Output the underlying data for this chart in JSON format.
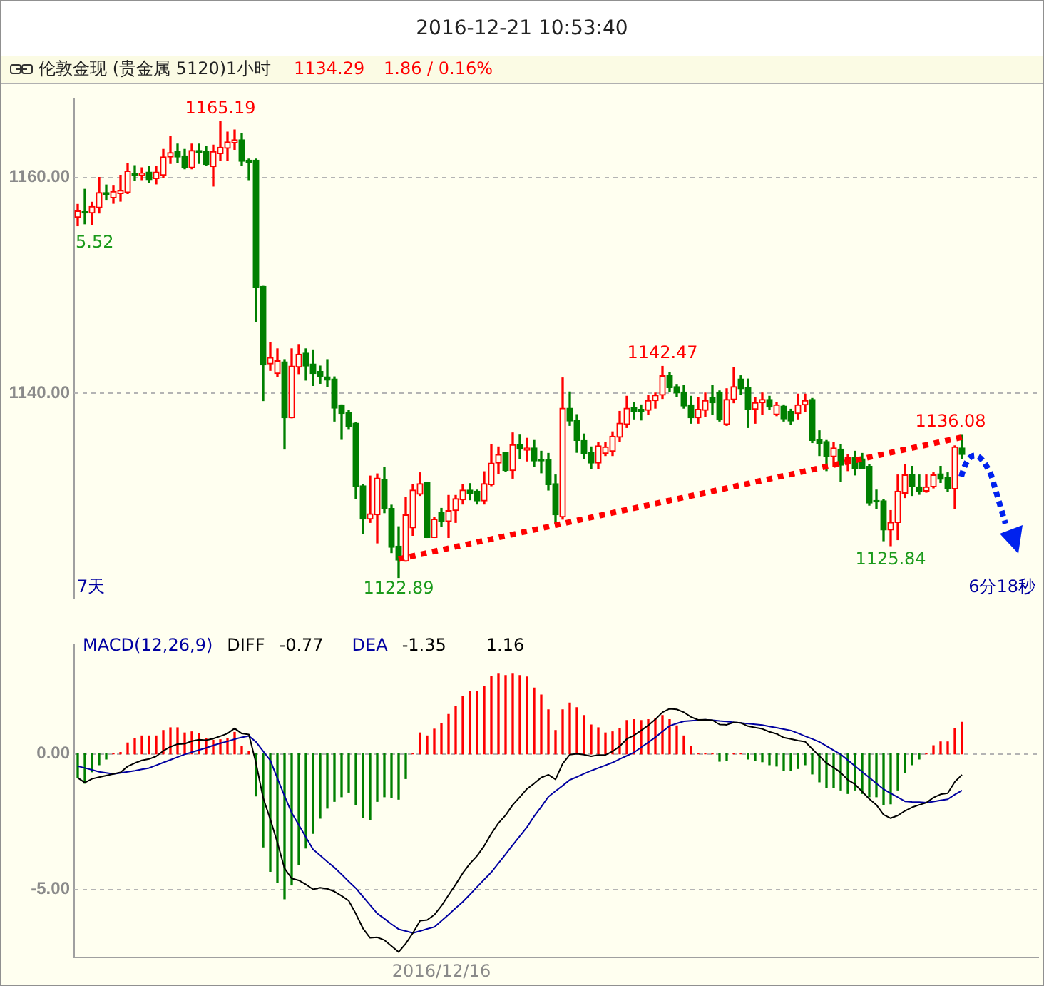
{
  "chart_data": [
    {
      "type": "candlestick",
      "title": "2016-12-21 10:53:40",
      "subtitle": "伦敦金现 (贵金属 5120)1小时",
      "categories": [
        null,
        null,
        null,
        null,
        null,
        null,
        null,
        null,
        null,
        null,
        null,
        null,
        null,
        null,
        null,
        null,
        null,
        null,
        null,
        null,
        null,
        null,
        null,
        null,
        null,
        null,
        null,
        null,
        null,
        null,
        null,
        null,
        null,
        null,
        null,
        null,
        null,
        null,
        null,
        null,
        null,
        null,
        null,
        null,
        null,
        null,
        null,
        null,
        null,
        null,
        null,
        null,
        null,
        null,
        null,
        null,
        null,
        null,
        null,
        null,
        null,
        null,
        null,
        null,
        null,
        null,
        null,
        null,
        null,
        null,
        null,
        null,
        null,
        null,
        null,
        null,
        null,
        null,
        null,
        null,
        null,
        null,
        null,
        null,
        null,
        null,
        null,
        null,
        null,
        null,
        null,
        null,
        null,
        null,
        null,
        null,
        null,
        null,
        null,
        null,
        null,
        null,
        null,
        null,
        null,
        null,
        null,
        null,
        null,
        null,
        null,
        null,
        null,
        null,
        null,
        null,
        null,
        null,
        null,
        null,
        null,
        null,
        null,
        null,
        null
      ],
      "ohlc": [
        [
          1156.3,
          1157.5,
          1155.52,
          1156.9
        ],
        [
          1156.8,
          1158.9,
          1155.7,
          1156.7
        ],
        [
          1156.7,
          1157.7,
          1155.6,
          1157.3
        ],
        [
          1157.2,
          1160,
          1156.7,
          1158.6
        ],
        [
          1158.6,
          1159.3,
          1157.9,
          1158.4
        ],
        [
          1158.1,
          1159.2,
          1157.6,
          1158.7
        ],
        [
          1158.5,
          1160.2,
          1157.8,
          1158.8
        ],
        [
          1158.6,
          1161.3,
          1158.5,
          1160.6
        ],
        [
          1160.4,
          1161.1,
          1159.7,
          1160.2
        ],
        [
          1160.2,
          1160.9,
          1159.8,
          1160.4
        ],
        [
          1160.5,
          1161,
          1159.5,
          1159.8
        ],
        [
          1159.9,
          1161,
          1159.4,
          1160.5
        ],
        [
          1160.2,
          1162.6,
          1160,
          1161.9
        ],
        [
          1161.9,
          1163.8,
          1161.3,
          1162.3
        ],
        [
          1162.4,
          1163.1,
          1161.4,
          1161.9
        ],
        [
          1162,
          1162.6,
          1160.8,
          1160.9
        ],
        [
          1160.9,
          1163.1,
          1160.8,
          1162.5
        ],
        [
          1162.5,
          1163.1,
          1161.3,
          1162.3
        ],
        [
          1162.4,
          1162.9,
          1161.1,
          1161.2
        ],
        [
          1161,
          1163,
          1159.2,
          1162.4
        ],
        [
          1162.2,
          1165.19,
          1161.6,
          1162.8
        ],
        [
          1162.7,
          1164.2,
          1161.6,
          1163.3
        ],
        [
          1163.2,
          1164.4,
          1162.6,
          1163.5
        ],
        [
          1163.5,
          1164.1,
          1161.1,
          1161.5
        ],
        [
          1161.6,
          1161.7,
          1159.8,
          1161.4
        ],
        [
          1161.6,
          1161.7,
          1146.6,
          1149.8
        ],
        [
          1149.9,
          1149.9,
          1139.3,
          1142.6
        ],
        [
          1142.7,
          1144.7,
          1142.1,
          1143.3
        ],
        [
          1141.8,
          1144.1,
          1141.5,
          1143
        ],
        [
          1142.9,
          1143.1,
          1134.8,
          1137.7
        ],
        [
          1137.7,
          1144.1,
          1137.7,
          1142.5
        ],
        [
          1142.4,
          1144.5,
          1141.8,
          1143.6
        ],
        [
          1143.7,
          1144.1,
          1141.2,
          1142.5
        ],
        [
          1142.7,
          1144,
          1140.7,
          1141.8
        ],
        [
          1142,
          1142.5,
          1140.9,
          1141.5
        ],
        [
          1141.5,
          1143.1,
          1140.6,
          1141.2
        ],
        [
          1141.3,
          1141.5,
          1137.4,
          1138.6
        ],
        [
          1138.9,
          1138.9,
          1135.7,
          1138.1
        ],
        [
          1138.2,
          1138.4,
          1136.7,
          1136.9
        ],
        [
          1137.2,
          1137.3,
          1130.2,
          1131.3
        ],
        [
          1131.4,
          1131.5,
          1127,
          1128.3
        ],
        [
          1128.3,
          1132.3,
          1128,
          1128.8
        ],
        [
          1128.7,
          1132.5,
          1126.1,
          1132.1
        ],
        [
          1132,
          1133.1,
          1128.9,
          1129.3
        ],
        [
          1129.3,
          1129.6,
          1125.2,
          1125.7
        ],
        [
          1125.8,
          1127.6,
          1122.89,
          1124.5
        ],
        [
          1124.4,
          1130.3,
          1124.4,
          1128.7
        ],
        [
          1127.5,
          1131.5,
          1126.8,
          1131
        ],
        [
          1130.6,
          1132.6,
          1130.5,
          1131.6
        ],
        [
          1131.7,
          1131.7,
          1126.6,
          1126.6
        ],
        [
          1126.6,
          1128.5,
          1126.6,
          1128.3
        ],
        [
          1128.9,
          1129.3,
          1127.6,
          1128.1
        ],
        [
          1128.1,
          1130.5,
          1126.6,
          1129.1
        ],
        [
          1129.1,
          1130.5,
          1128,
          1130.2
        ],
        [
          1130.1,
          1131.5,
          1129.7,
          1131
        ],
        [
          1131,
          1131.6,
          1130.1,
          1130.7
        ],
        [
          1130.9,
          1131,
          1129.7,
          1130
        ],
        [
          1130,
          1132.7,
          1129.7,
          1131.6
        ],
        [
          1131.5,
          1135.2,
          1131.4,
          1133.5
        ],
        [
          1133.5,
          1135,
          1132.5,
          1134.3
        ],
        [
          1134.5,
          1134.5,
          1132.7,
          1132.8
        ],
        [
          1132.8,
          1136.3,
          1132.1,
          1135.2
        ],
        [
          1135.2,
          1136.1,
          1133.9,
          1134.8
        ],
        [
          1134.7,
          1135.8,
          1133.7,
          1134.9
        ],
        [
          1134.9,
          1135.6,
          1133.2,
          1133.7
        ],
        [
          1133.8,
          1134.6,
          1132.6,
          1133.7
        ],
        [
          1133.8,
          1134.4,
          1131,
          1131.5
        ],
        [
          1131.6,
          1132.4,
          1127.9,
          1128.7
        ],
        [
          1128.5,
          1141.4,
          1128.3,
          1138.6
        ],
        [
          1138.6,
          1140.1,
          1137,
          1137.4
        ],
        [
          1137.5,
          1138,
          1134.5,
          1135.6
        ],
        [
          1135.6,
          1136.2,
          1133.9,
          1134.4
        ],
        [
          1134.5,
          1135,
          1133,
          1133.5
        ],
        [
          1133.5,
          1135.4,
          1133,
          1135.1
        ],
        [
          1134.4,
          1135.4,
          1134.2,
          1135
        ],
        [
          1134.6,
          1136.4,
          1134.2,
          1136
        ],
        [
          1135.9,
          1138.3,
          1135.5,
          1137.2
        ],
        [
          1137.1,
          1139.7,
          1136.8,
          1138.6
        ],
        [
          1138.7,
          1139.1,
          1137.6,
          1138.3
        ],
        [
          1138.5,
          1138.9,
          1137.5,
          1138.3
        ],
        [
          1138.4,
          1139.8,
          1138,
          1139.3
        ],
        [
          1139.3,
          1140,
          1138.6,
          1139.8
        ],
        [
          1139.8,
          1142.47,
          1139.5,
          1141.6
        ],
        [
          1141.6,
          1141.9,
          1140.1,
          1140.5
        ],
        [
          1140.6,
          1140.8,
          1139.7,
          1140
        ],
        [
          1140.1,
          1140.7,
          1138.6,
          1138.8
        ],
        [
          1138.9,
          1139.7,
          1137.2,
          1137.7
        ],
        [
          1137.7,
          1139.6,
          1137.2,
          1138.5
        ],
        [
          1138.4,
          1140,
          1137.8,
          1139.3
        ],
        [
          1139.6,
          1140.7,
          1138,
          1139.1
        ],
        [
          1140.1,
          1140.2,
          1137.4,
          1137.5
        ],
        [
          1137.1,
          1140.4,
          1137,
          1139.4
        ],
        [
          1139.4,
          1142.4,
          1139.1,
          1140.6
        ],
        [
          1141.3,
          1141.6,
          1139.9,
          1140.4
        ],
        [
          1140.5,
          1141.3,
          1136.8,
          1138.5
        ],
        [
          1138.5,
          1139.6,
          1137.2,
          1139.1
        ],
        [
          1139.1,
          1140,
          1138,
          1139.4
        ],
        [
          1139.4,
          1139.7,
          1138.5,
          1138.7
        ],
        [
          1138,
          1139.1,
          1137.9,
          1138.9
        ],
        [
          1138.8,
          1138.9,
          1137.4,
          1137.6
        ],
        [
          1138.3,
          1138.5,
          1137.1,
          1137.4
        ],
        [
          1138.1,
          1139.9,
          1137.6,
          1138.9
        ],
        [
          1138.9,
          1139.9,
          1138.3,
          1139.3
        ],
        [
          1139.4,
          1139.5,
          1135.4,
          1135.6
        ],
        [
          1135.7,
          1136.5,
          1134.2,
          1135.3
        ],
        [
          1135.5,
          1135.6,
          1132.8,
          1134.1
        ],
        [
          1134.1,
          1135.4,
          1133.2,
          1134.9
        ],
        [
          1134.8,
          1135.2,
          1131.8,
          1133.3
        ],
        [
          1133.4,
          1134.3,
          1132.8,
          1134
        ],
        [
          1134,
          1134.6,
          1132.4,
          1133
        ],
        [
          1133.9,
          1134.4,
          1133,
          1133
        ],
        [
          1133.2,
          1133.4,
          1129.6,
          1129.8
        ],
        [
          1130,
          1131,
          1129.3,
          1129.9
        ],
        [
          1130,
          1130.1,
          1126.3,
          1127.3
        ],
        [
          1127.3,
          1129.1,
          1125.84,
          1128
        ],
        [
          1128,
          1132.4,
          1126.4,
          1130.9
        ],
        [
          1130.7,
          1133.4,
          1130.3,
          1132.4
        ],
        [
          1132.4,
          1133.2,
          1130.5,
          1131.3
        ],
        [
          1131.3,
          1132.4,
          1130.6,
          1130.9
        ],
        [
          1130.9,
          1132.4,
          1130.8,
          1131.3
        ],
        [
          1131.3,
          1132.6,
          1131.2,
          1132.4
        ],
        [
          1132.5,
          1133.2,
          1131.7,
          1132
        ],
        [
          1132.2,
          1132.6,
          1130.9,
          1131.1
        ],
        [
          1131.1,
          1135.1,
          1129.3,
          1135
        ],
        [
          1134.9,
          1136.08,
          1133.9,
          1134.29
        ]
      ],
      "colors": [
        "#ff0000",
        "#008000",
        "#ff0000",
        "#ff0000",
        "#008000",
        "#ff0000",
        "#ff0000",
        "#ff0000",
        "#008000",
        "#ff0000",
        "#008000",
        "#ff0000",
        "#ff0000",
        "#ff0000",
        "#008000",
        "#008000",
        "#ff0000",
        "#008000",
        "#008000",
        "#ff0000",
        "#ff0000",
        "#ff0000",
        "#ff0000",
        "#008000",
        "#008000",
        "#008000",
        "#008000",
        "#ff0000",
        "#ff0000",
        "#008000",
        "#ff0000",
        "#ff0000",
        "#008000",
        "#008000",
        "#008000",
        "#008000",
        "#008000",
        "#008000",
        "#008000",
        "#008000",
        "#008000",
        "#ff0000",
        "#ff0000",
        "#008000",
        "#008000",
        "#008000",
        "#ff0000",
        "#ff0000",
        "#ff0000",
        "#008000",
        "#ff0000",
        "#008000",
        "#ff0000",
        "#ff0000",
        "#ff0000",
        "#008000",
        "#008000",
        "#ff0000",
        "#ff0000",
        "#ff0000",
        "#008000",
        "#ff0000",
        "#008000",
        "#ff0000",
        "#008000",
        "#008000",
        "#008000",
        "#008000",
        "#ff0000",
        "#008000",
        "#008000",
        "#008000",
        "#008000",
        "#ff0000",
        "#ff0000",
        "#ff0000",
        "#ff0000",
        "#ff0000",
        "#008000",
        "#008000",
        "#ff0000",
        "#ff0000",
        "#ff0000",
        "#008000",
        "#008000",
        "#008000",
        "#008000",
        "#ff0000",
        "#ff0000",
        "#008000",
        "#008000",
        "#ff0000",
        "#ff0000",
        "#008000",
        "#008000",
        "#ff0000",
        "#ff0000",
        "#008000",
        "#ff0000",
        "#008000",
        "#008000",
        "#ff0000",
        "#ff0000",
        "#008000",
        "#008000",
        "#008000",
        "#ff0000",
        "#008000",
        "#ff0000",
        "#008000",
        "#008000",
        "#008000",
        "#008000",
        "#008000",
        "#ff0000",
        "#ff0000",
        "#ff0000",
        "#008000",
        "#008000",
        "#ff0000",
        "#ff0000",
        "#008000",
        "#008000",
        "#ff0000",
        "#008000"
      ],
      "series": [
        {
          "type": "line",
          "color": "#ff0000",
          "line_style": "dotted",
          "values": [
            null,
            null,
            null,
            null,
            null,
            null,
            null,
            null,
            null,
            null,
            null,
            null,
            null,
            null,
            null,
            null,
            null,
            null,
            null,
            null,
            null,
            null,
            null,
            null,
            null,
            null,
            null,
            null,
            null,
            null,
            null,
            null,
            null,
            null,
            null,
            null,
            null,
            null,
            null,
            null,
            null,
            null,
            null,
            null,
            null,
            1124.6,
            null,
            null,
            null,
            null,
            null,
            null,
            null,
            null,
            null,
            null,
            null,
            null,
            null,
            null,
            null,
            null,
            null,
            null,
            null,
            null,
            null,
            null,
            null,
            null,
            null,
            null,
            null,
            null,
            null,
            null,
            null,
            null,
            null,
            null,
            null,
            null,
            null,
            null,
            null,
            null,
            null,
            null,
            null,
            null,
            null,
            null,
            null,
            null,
            null,
            null,
            null,
            null,
            null,
            null,
            null,
            null,
            null,
            null,
            null,
            null,
            null,
            null,
            null,
            null,
            null,
            null,
            null,
            null,
            null,
            null,
            null,
            null,
            null,
            null,
            null,
            null,
            null,
            null,
            1135.9
          ]
        }
      ],
      "ylim": [
        1121,
        1167.3
      ],
      "yticks": [
        {
          "value": 1140,
          "label": "1140.00"
        },
        {
          "value": 1160,
          "label": "1160.00"
        }
      ],
      "grid": "y",
      "tick_labels": "y",
      "annotations": [
        {
          "text": "1165.19",
          "y": 1165.19
        },
        {
          "text": "1142.47",
          "y": 1142.47
        },
        {
          "text": "1136.08",
          "y": 1136.08
        },
        {
          "text": "1125.84",
          "y": 1125.84
        },
        {
          "text": "1122.89",
          "y": 1122.89
        },
        "1134.29",
        "1.86 / 0.16%",
        "5.52",
        "7天",
        "6分18秒"
      ]
    },
    {
      "type": "bar",
      "title": "MACD(12,26,9)",
      "categories": [
        null,
        null,
        null,
        null,
        null,
        null,
        null,
        null,
        null,
        null,
        null,
        null,
        null,
        null,
        null,
        null,
        null,
        null,
        null,
        null,
        null,
        null,
        null,
        null,
        null,
        null,
        null,
        null,
        null,
        null,
        null,
        null,
        null,
        null,
        null,
        null,
        null,
        null,
        null,
        null,
        null,
        null,
        null,
        null,
        null,
        null,
        null,
        null,
        null,
        null,
        null,
        "2016/12/16",
        null,
        null,
        null,
        null,
        null,
        null,
        null,
        null,
        null,
        null,
        null,
        null,
        null,
        null,
        null,
        null,
        null,
        null,
        null,
        null,
        null,
        null,
        null,
        null,
        null,
        null,
        null,
        null,
        null,
        null,
        null,
        null,
        null,
        null,
        null,
        null,
        null,
        null,
        null,
        null,
        null,
        null,
        null,
        null,
        null,
        null,
        null,
        null,
        null,
        null,
        null,
        null,
        null,
        null,
        null,
        null,
        null,
        null,
        null,
        null,
        null,
        null,
        null,
        null,
        null,
        null,
        null,
        null,
        null,
        null,
        null,
        null,
        null
      ],
      "series": [
        {
          "type": "bar",
          "color": "#ff0000",
          "values": [
            null,
            null,
            null,
            null,
            null,
            0,
            0.05,
            0.4,
            0.56,
            0.66,
            0.66,
            0.66,
            0.86,
            0.96,
            0.96,
            0.77,
            0.81,
            0.76,
            0.56,
            0.5,
            0.52,
            0.57,
            0.79,
            0.27,
            0.1,
            null,
            null,
            null,
            null,
            null,
            null,
            null,
            null,
            null,
            null,
            null,
            null,
            null,
            null,
            null,
            null,
            null,
            null,
            null,
            null,
            null,
            null,
            0,
            0.77,
            0.66,
            0.91,
            1.11,
            1.45,
            1.75,
            2.12,
            2.29,
            2.29,
            2.49,
            2.85,
            2.96,
            2.88,
            2.96,
            2.88,
            2.83,
            2.42,
            2.17,
            1.62,
            0.86,
            1.62,
            1.87,
            1.7,
            1.41,
            1.06,
            0.96,
            0.77,
            0.81,
            0.94,
            1.23,
            1.26,
            1.23,
            1.26,
            1.31,
            1.41,
            1.26,
            1.03,
            0.66,
            0.27,
            0.02,
            0,
            0,
            null,
            null,
            0,
            0,
            null,
            null,
            null,
            null,
            null,
            null,
            null,
            null,
            null,
            null,
            null,
            null,
            null,
            null,
            null,
            null,
            null,
            null,
            null,
            null,
            null,
            null,
            null,
            null,
            null,
            0,
            0.3,
            0.44,
            0.44,
            0.94,
            1.16
          ]
        },
        {
          "type": "bar",
          "color": "#008000",
          "values": [
            -0.86,
            -1.08,
            -0.66,
            -0.4,
            -0.19,
            null,
            null,
            null,
            null,
            null,
            null,
            null,
            null,
            null,
            null,
            null,
            null,
            null,
            null,
            null,
            null,
            null,
            null,
            null,
            null,
            -1.55,
            -3.43,
            -4.33,
            -4.73,
            -5.34,
            -4.83,
            -4.07,
            -3.47,
            -2.93,
            -2.37,
            -2,
            -1.75,
            -1.58,
            -1.41,
            -1.87,
            -2.34,
            -2.42,
            -1.75,
            -1.58,
            -1.62,
            -1.67,
            -0.91,
            null,
            null,
            null,
            null,
            null,
            null,
            null,
            null,
            null,
            null,
            null,
            null,
            null,
            null,
            null,
            null,
            null,
            null,
            null,
            null,
            null,
            null,
            null,
            null,
            null,
            null,
            null,
            null,
            null,
            null,
            null,
            null,
            null,
            null,
            null,
            null,
            null,
            null,
            null,
            null,
            null,
            null,
            null,
            -0.27,
            -0.24,
            null,
            null,
            -0.19,
            -0.24,
            -0.29,
            -0.4,
            -0.45,
            -0.62,
            -0.62,
            -0.54,
            -0.4,
            -0.74,
            -1.03,
            -1.25,
            -1.25,
            -1.33,
            -1.46,
            -1.33,
            -1.46,
            -1.58,
            -1.58,
            -1.87,
            -1.84,
            -1.33,
            -0.69,
            -0.4,
            -0.19,
            null,
            null,
            null,
            null,
            null,
            null
          ]
        },
        {
          "type": "line",
          "name": "DIFF",
          "color": "#000000",
          "values": [
            -0.88,
            -1.06,
            -0.92,
            -0.86,
            -0.8,
            -0.74,
            -0.68,
            -0.46,
            -0.34,
            -0.24,
            -0.19,
            -0.09,
            0.11,
            0.26,
            0.36,
            0.37,
            0.47,
            0.52,
            0.5,
            0.56,
            0.65,
            0.75,
            0.94,
            0.75,
            0.71,
            -0.34,
            -1.62,
            -2.41,
            -3.27,
            -4.22,
            -4.59,
            -4.66,
            -4.81,
            -4.99,
            -4.93,
            -4.97,
            -5.07,
            -5.23,
            -5.41,
            -5.89,
            -6.43,
            -6.78,
            -6.76,
            -6.86,
            -7.08,
            -7.3,
            -6.99,
            -6.6,
            -6.15,
            -6.12,
            -5.93,
            -5.6,
            -5.2,
            -4.81,
            -4.39,
            -4.04,
            -3.76,
            -3.39,
            -2.94,
            -2.55,
            -2.26,
            -1.88,
            -1.59,
            -1.29,
            -1.09,
            -0.87,
            -0.77,
            -0.94,
            -0.36,
            -0.03,
            0,
            -0.03,
            -0.09,
            -0.04,
            -0.04,
            0.09,
            0.28,
            0.55,
            0.68,
            0.86,
            1.05,
            1.27,
            1.53,
            1.66,
            1.64,
            1.53,
            1.36,
            1.25,
            1.26,
            1.24,
            1.08,
            1.07,
            1.16,
            1.14,
            1.02,
            0.97,
            0.92,
            0.81,
            0.74,
            0.6,
            0.55,
            0.49,
            0.45,
            0.18,
            -0.08,
            -0.34,
            -0.5,
            -0.69,
            -0.96,
            -1.12,
            -1.39,
            -1.66,
            -1.88,
            -2.24,
            -2.37,
            -2.27,
            -2.1,
            -1.97,
            -1.88,
            -1.8,
            -1.61,
            -1.49,
            -1.45,
            -1.03,
            -0.77
          ]
        },
        {
          "type": "line",
          "name": "DEA",
          "color": "#0000a0",
          "values": [
            -0.45,
            -0.52,
            -0.59,
            -0.66,
            -0.7,
            -0.74,
            -0.7,
            -0.66,
            -0.62,
            -0.57,
            -0.52,
            -0.42,
            -0.32,
            -0.22,
            -0.12,
            -0.02,
            0.06,
            0.14,
            0.22,
            0.31,
            0.39,
            0.46,
            0.54,
            0.61,
            0.66,
            0.44,
            0.1,
            -0.24,
            -0.9,
            -1.55,
            -2.17,
            -2.62,
            -3.07,
            -3.52,
            -3.74,
            -3.97,
            -4.19,
            -4.44,
            -4.7,
            -4.95,
            -5.26,
            -5.57,
            -5.88,
            -6.07,
            -6.27,
            -6.46,
            -6.53,
            -6.6,
            -6.53,
            -6.45,
            -6.38,
            -6.15,
            -5.92,
            -5.68,
            -5.45,
            -5.18,
            -4.9,
            -4.63,
            -4.36,
            -4.03,
            -3.7,
            -3.36,
            -3.03,
            -2.7,
            -2.3,
            -1.95,
            -1.58,
            -1.37,
            -1.17,
            -0.96,
            -0.85,
            -0.73,
            -0.62,
            -0.52,
            -0.42,
            -0.32,
            -0.19,
            -0.07,
            0.05,
            0.24,
            0.42,
            0.61,
            0.82,
            1.03,
            1.12,
            1.2,
            1.22,
            1.24,
            1.26,
            1.24,
            1.21,
            1.19,
            1.16,
            1.14,
            1.11,
            1.09,
            1.06,
            1.01,
            0.96,
            0.91,
            0.86,
            0.76,
            0.65,
            0.55,
            0.44,
            0.29,
            0.13,
            -0.02,
            -0.23,
            -0.45,
            -0.66,
            -0.87,
            -1.09,
            -1.3,
            -1.45,
            -1.6,
            -1.75,
            -1.77,
            -1.78,
            -1.8,
            -1.76,
            -1.71,
            -1.67,
            -1.5,
            -1.35
          ]
        }
      ],
      "ylim": [
        -7.5,
        4
      ],
      "yticks": [
        {
          "value": 0,
          "label": "0.00"
        },
        {
          "value": -5,
          "label": "-5.00"
        }
      ],
      "grid": "y",
      "legend": "top left",
      "annotations": [
        "-0.77",
        "-1.35",
        "1.16"
      ]
    }
  ]
}
